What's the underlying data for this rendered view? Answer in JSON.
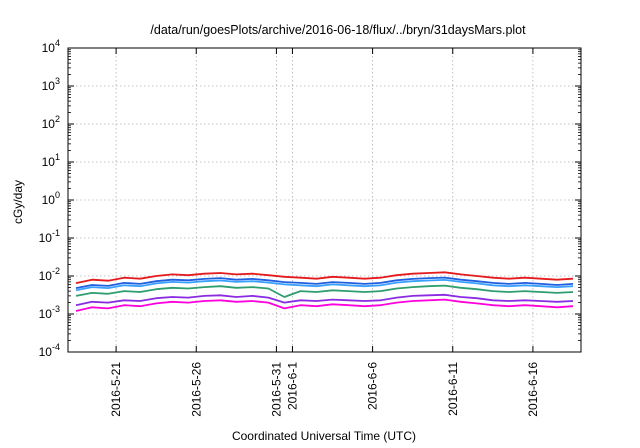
{
  "chart_data": {
    "type": "line",
    "title": "/data/run/goesPlots/archive/2016-06-18/flux/../bryn/31daysMars.plot",
    "xlabel": "Coordinated Universal Time (UTC)",
    "ylabel": "cGy/day",
    "yscale": "log",
    "ylim": [
      0.0001,
      10000
    ],
    "xlim": [
      "2016-05-18T00:00",
      "2016-06-19T00:00"
    ],
    "grid": true,
    "legend": "none",
    "y_ticks": [
      {
        "base": "10",
        "exp": "-4",
        "value": 0.0001
      },
      {
        "base": "10",
        "exp": "-3",
        "value": 0.001
      },
      {
        "base": "10",
        "exp": "-2",
        "value": 0.01
      },
      {
        "base": "10",
        "exp": "-1",
        "value": 0.1
      },
      {
        "base": "10",
        "exp": "0",
        "value": 1
      },
      {
        "base": "10",
        "exp": "1",
        "value": 10
      },
      {
        "base": "10",
        "exp": "2",
        "value": 100
      },
      {
        "base": "10",
        "exp": "3",
        "value": 1000
      },
      {
        "base": "10",
        "exp": "4",
        "value": 10000
      }
    ],
    "x_ticks": [
      {
        "label": "2016-5-21",
        "date": "2016-05-21T00:00"
      },
      {
        "label": "2016-5-26",
        "date": "2016-05-26T00:00"
      },
      {
        "label": "2016-5-31",
        "date": "2016-05-31T00:00"
      },
      {
        "label": "2016-6-1",
        "date": "2016-06-01T00:00"
      },
      {
        "label": "2016-6-6",
        "date": "2016-06-06T00:00"
      },
      {
        "label": "2016-6-11",
        "date": "2016-06-11T00:00"
      },
      {
        "label": "2016-6-16",
        "date": "2016-06-16T00:00"
      }
    ],
    "x": [
      "2016-05-18T12:00",
      "2016-05-19T12:00",
      "2016-05-20T12:00",
      "2016-05-21T12:00",
      "2016-05-22T12:00",
      "2016-05-23T12:00",
      "2016-05-24T12:00",
      "2016-05-25T12:00",
      "2016-05-26T12:00",
      "2016-05-27T12:00",
      "2016-05-28T12:00",
      "2016-05-29T12:00",
      "2016-05-30T12:00",
      "2016-05-31T12:00",
      "2016-06-01T12:00",
      "2016-06-02T12:00",
      "2016-06-03T12:00",
      "2016-06-04T12:00",
      "2016-06-05T12:00",
      "2016-06-06T12:00",
      "2016-06-07T12:00",
      "2016-06-08T12:00",
      "2016-06-09T12:00",
      "2016-06-10T12:00",
      "2016-06-11T12:00",
      "2016-06-12T12:00",
      "2016-06-13T12:00",
      "2016-06-14T12:00",
      "2016-06-15T12:00",
      "2016-06-16T12:00",
      "2016-06-17T12:00",
      "2016-06-18T12:00"
    ],
    "series": [
      {
        "color": "#e41a1c",
        "values": [
          0.0065,
          0.008,
          0.0075,
          0.009,
          0.0085,
          0.01,
          0.011,
          0.0105,
          0.0115,
          0.012,
          0.011,
          0.0115,
          0.0105,
          0.0095,
          0.009,
          0.0085,
          0.0095,
          0.009,
          0.0085,
          0.009,
          0.0105,
          0.0115,
          0.012,
          0.0125,
          0.011,
          0.01,
          0.009,
          0.0085,
          0.009,
          0.0085,
          0.008,
          0.0085
        ]
      },
      {
        "color": "#1f5fe0",
        "values": [
          0.0048,
          0.0058,
          0.0055,
          0.0066,
          0.0062,
          0.0073,
          0.008,
          0.0077,
          0.0084,
          0.0088,
          0.008,
          0.0084,
          0.0077,
          0.0069,
          0.0066,
          0.0062,
          0.0069,
          0.0066,
          0.0062,
          0.0066,
          0.0077,
          0.0084,
          0.0088,
          0.0091,
          0.008,
          0.0073,
          0.0066,
          0.0062,
          0.0066,
          0.0062,
          0.0058,
          0.0062
        ]
      },
      {
        "color": "#3aa0ff",
        "values": [
          0.0042,
          0.0051,
          0.0048,
          0.0057,
          0.0054,
          0.0064,
          0.007,
          0.0067,
          0.0073,
          0.0076,
          0.007,
          0.0073,
          0.0067,
          0.006,
          0.0057,
          0.0054,
          0.006,
          0.0057,
          0.0054,
          0.0057,
          0.0067,
          0.0073,
          0.0076,
          0.0079,
          0.007,
          0.0064,
          0.0057,
          0.0054,
          0.0057,
          0.0054,
          0.0051,
          0.0054
        ]
      },
      {
        "color": "#2e9e6e",
        "values": [
          0.003,
          0.0036,
          0.0034,
          0.004,
          0.0038,
          0.0045,
          0.0049,
          0.0047,
          0.0051,
          0.0054,
          0.0049,
          0.0051,
          0.0047,
          0.0028,
          0.004,
          0.0038,
          0.0042,
          0.004,
          0.0038,
          0.004,
          0.0047,
          0.0051,
          0.0054,
          0.0056,
          0.0049,
          0.0045,
          0.004,
          0.0038,
          0.004,
          0.0038,
          0.0036,
          0.0038
        ]
      },
      {
        "color": "#8a2be2",
        "values": [
          0.0017,
          0.0021,
          0.002,
          0.0023,
          0.0022,
          0.0026,
          0.0028,
          0.0027,
          0.003,
          0.0031,
          0.0028,
          0.003,
          0.0027,
          0.002,
          0.0023,
          0.0022,
          0.0024,
          0.0023,
          0.0022,
          0.0023,
          0.0027,
          0.003,
          0.0031,
          0.0032,
          0.0028,
          0.0026,
          0.0023,
          0.0022,
          0.0023,
          0.0022,
          0.0021,
          0.0022
        ]
      },
      {
        "color": "#ff00dd",
        "values": [
          0.0012,
          0.0015,
          0.0014,
          0.0017,
          0.0016,
          0.0019,
          0.0021,
          0.002,
          0.0022,
          0.0023,
          0.0021,
          0.0022,
          0.002,
          0.0014,
          0.0017,
          0.0016,
          0.0018,
          0.0017,
          0.0016,
          0.0017,
          0.002,
          0.0022,
          0.0023,
          0.0024,
          0.0021,
          0.0019,
          0.0017,
          0.0016,
          0.0017,
          0.0016,
          0.0015,
          0.0016
        ]
      }
    ]
  }
}
